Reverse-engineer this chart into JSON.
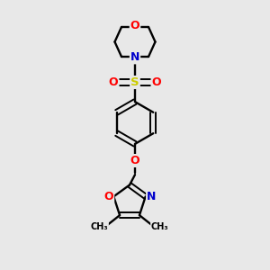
{
  "bg_color": "#e8e8e8",
  "bond_color": "#000000",
  "colors": {
    "O": "#ff0000",
    "N": "#0000cc",
    "S": "#cccc00",
    "C": "#000000"
  }
}
